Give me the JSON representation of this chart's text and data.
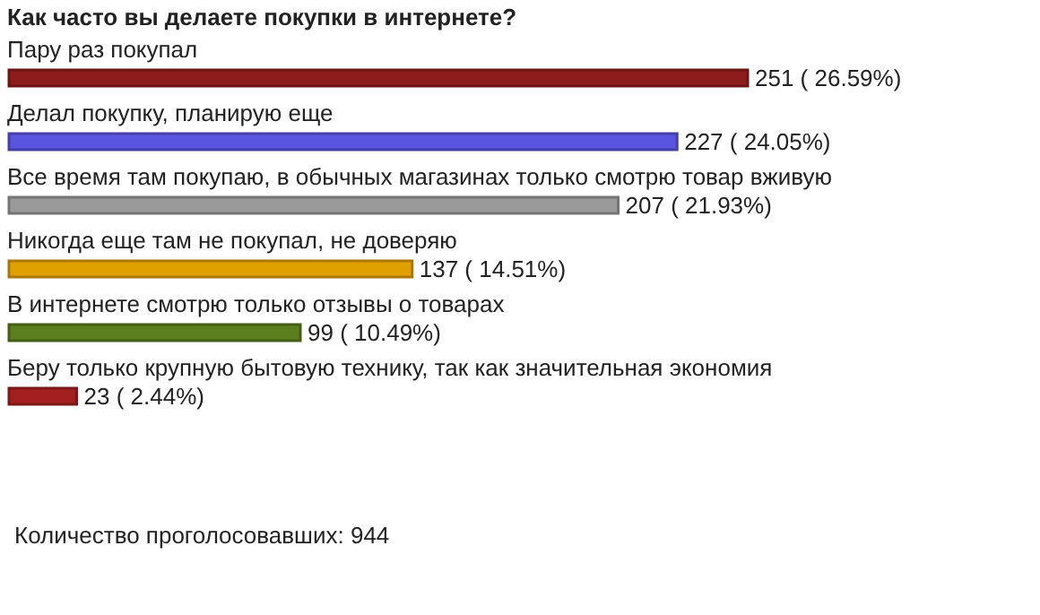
{
  "chart_data": {
    "type": "bar",
    "orientation": "horizontal",
    "title": "Как часто вы делаете покупки в интернете?",
    "categories": [
      "Пару раз покупал",
      "Делал покупку, планирую еще",
      "Все время там покупаю, в обычных магазинах только смотрю товар вживую",
      "Никогда еще там не покупал, не доверяю",
      "В интернете смотрю только отзывы о товарах",
      "Беру только крупную бытовую технику, так как значительная экономия"
    ],
    "values": [
      251,
      227,
      207,
      137,
      99,
      23
    ],
    "colors": [
      "#8e1c1c",
      "#5a55e0",
      "#9a9a9a",
      "#e0a000",
      "#5b7f1c",
      "#a42020"
    ],
    "value_labels": [
      "251 ( 26.59%)",
      "227 ( 24.05%)",
      "207 ( 21.93%)",
      "137 ( 14.51%)",
      "99 ( 10.49%)",
      "23 ( 2.44%)"
    ],
    "annotations": [
      "Количество проголосовавших: 944"
    ]
  }
}
